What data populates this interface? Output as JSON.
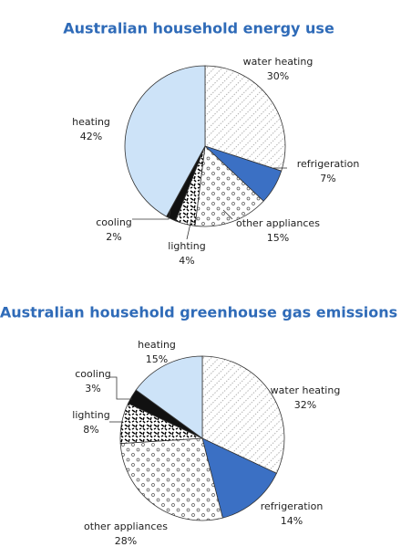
{
  "chart_data": [
    {
      "type": "pie",
      "title": "Australian household energy use",
      "categories": [
        "water heating",
        "refrigeration",
        "other appliances",
        "lighting",
        "cooling",
        "heating"
      ],
      "values": [
        30,
        7,
        15,
        4,
        2,
        42
      ],
      "value_labels": [
        "30%",
        "7%",
        "15%",
        "4%",
        "2%",
        "42%"
      ],
      "colors": [
        "#ffffff",
        "#3b70c4",
        "#ffffff",
        "#ffffff",
        "#111111",
        "#cde3f8"
      ],
      "patterns": [
        "hatch",
        "none",
        "circles",
        "squiggle",
        "none",
        "none"
      ]
    },
    {
      "type": "pie",
      "title": "Australian household greenhouse gas emissions",
      "categories": [
        "water heating",
        "refrigeration",
        "other appliances",
        "lighting",
        "cooling",
        "heating"
      ],
      "values": [
        32,
        14,
        28,
        8,
        3,
        15
      ],
      "value_labels": [
        "32%",
        "14%",
        "28%",
        "8%",
        "3%",
        "15%"
      ],
      "colors": [
        "#ffffff",
        "#3b70c4",
        "#ffffff",
        "#ffffff",
        "#111111",
        "#cde3f8"
      ],
      "patterns": [
        "hatch",
        "none",
        "circles",
        "squiggle",
        "none",
        "none"
      ]
    }
  ]
}
